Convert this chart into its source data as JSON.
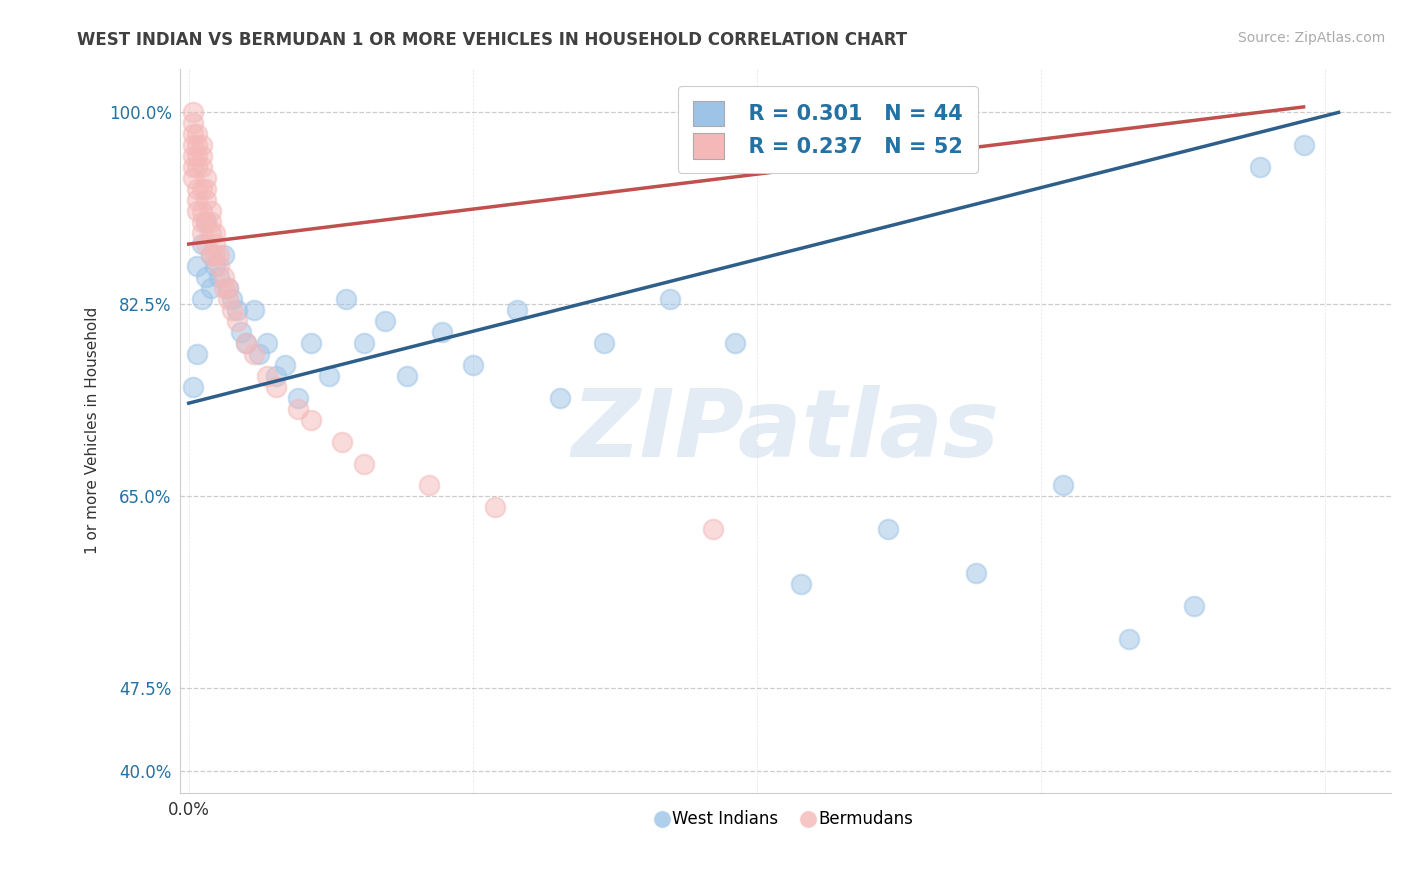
{
  "title": "WEST INDIAN VS BERMUDAN 1 OR MORE VEHICLES IN HOUSEHOLD CORRELATION CHART",
  "source": "Source: ZipAtlas.com",
  "ylabel": "1 or more Vehicles in Household",
  "xlim_min": -0.002,
  "xlim_max": 0.275,
  "ylim_min": 0.38,
  "ylim_max": 1.04,
  "ytick_positions": [
    0.4,
    0.475,
    0.65,
    0.825,
    1.0
  ],
  "ytick_labels": [
    "40.0%",
    "47.5%",
    "65.0%",
    "82.5%",
    "100.0%"
  ],
  "xtick_positions": [
    0.0
  ],
  "xtick_labels": [
    "0.0%"
  ],
  "legend_r_blue": "R = 0.301",
  "legend_n_blue": "N = 44",
  "legend_r_pink": "R = 0.237",
  "legend_n_pink": "N = 52",
  "blue_scatter_color": "#9dc3e6",
  "pink_scatter_color": "#f4b8b8",
  "blue_line_color": "#2e5f8a",
  "pink_line_color": "#c0504d",
  "watermark_text": "ZIPatlas",
  "watermark_color": "#c8d8ea",
  "title_color": "#404040",
  "source_color": "#aaaaaa",
  "grid_color": "#cccccc",
  "axis_tick_color": "#2471a3",
  "legend_text_color": "#2471a3",
  "bottom_legend_labels": [
    "West Indians",
    "Bermudans"
  ],
  "west_indians_x": [
    0.001,
    0.002,
    0.002,
    0.003,
    0.003,
    0.004,
    0.004,
    0.005,
    0.005,
    0.006,
    0.007,
    0.008,
    0.009,
    0.01,
    0.011,
    0.012,
    0.013,
    0.015,
    0.016,
    0.018,
    0.02,
    0.022,
    0.025,
    0.028,
    0.032,
    0.036,
    0.04,
    0.045,
    0.05,
    0.058,
    0.065,
    0.075,
    0.085,
    0.095,
    0.11,
    0.125,
    0.14,
    0.16,
    0.18,
    0.2,
    0.215,
    0.23,
    0.245,
    0.255
  ],
  "west_indians_y": [
    0.75,
    0.78,
    0.86,
    0.83,
    0.88,
    0.85,
    0.9,
    0.84,
    0.87,
    0.86,
    0.85,
    0.87,
    0.84,
    0.83,
    0.82,
    0.8,
    0.79,
    0.82,
    0.78,
    0.79,
    0.76,
    0.77,
    0.74,
    0.79,
    0.76,
    0.83,
    0.79,
    0.81,
    0.76,
    0.8,
    0.77,
    0.82,
    0.74,
    0.79,
    0.83,
    0.79,
    0.57,
    0.62,
    0.58,
    0.66,
    0.52,
    0.55,
    0.95,
    0.97
  ],
  "bermudans_x": [
    0.001,
    0.001,
    0.001,
    0.001,
    0.001,
    0.001,
    0.001,
    0.002,
    0.002,
    0.002,
    0.002,
    0.002,
    0.002,
    0.002,
    0.003,
    0.003,
    0.003,
    0.003,
    0.003,
    0.003,
    0.003,
    0.004,
    0.004,
    0.004,
    0.004,
    0.004,
    0.005,
    0.005,
    0.005,
    0.005,
    0.006,
    0.006,
    0.006,
    0.007,
    0.007,
    0.008,
    0.008,
    0.009,
    0.009,
    0.01,
    0.011,
    0.013,
    0.015,
    0.018,
    0.02,
    0.025,
    0.028,
    0.035,
    0.04,
    0.055,
    0.07,
    0.12
  ],
  "bermudans_y": [
    0.97,
    0.98,
    0.99,
    1.0,
    0.96,
    0.95,
    0.94,
    0.96,
    0.97,
    0.98,
    0.95,
    0.93,
    0.91,
    0.92,
    0.95,
    0.96,
    0.97,
    0.93,
    0.91,
    0.89,
    0.9,
    0.92,
    0.93,
    0.94,
    0.9,
    0.88,
    0.9,
    0.91,
    0.89,
    0.87,
    0.88,
    0.89,
    0.87,
    0.86,
    0.87,
    0.84,
    0.85,
    0.83,
    0.84,
    0.82,
    0.81,
    0.79,
    0.78,
    0.76,
    0.75,
    0.73,
    0.72,
    0.7,
    0.68,
    0.66,
    0.64,
    0.62
  ],
  "blue_line_x0": 0.0,
  "blue_line_y0": 0.735,
  "blue_line_x1": 0.263,
  "blue_line_y1": 1.0,
  "pink_line_x0": 0.0,
  "pink_line_y0": 0.88,
  "pink_line_x1": 0.255,
  "pink_line_y1": 1.005
}
